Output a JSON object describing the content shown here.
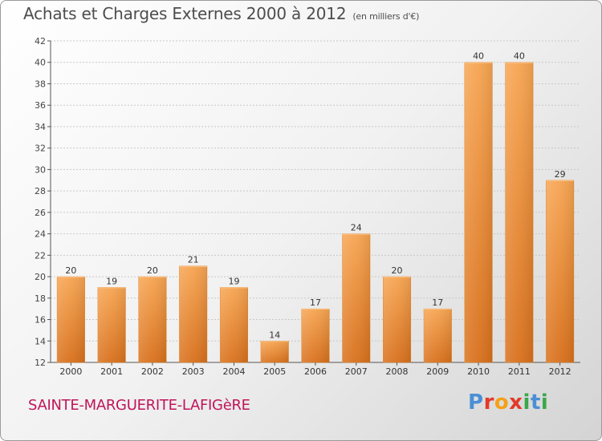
{
  "chart_data": {
    "type": "bar",
    "title": "Achats et Charges Externes 2000 à 2012",
    "subtitle": "(en milliers d'€)",
    "categories": [
      "2000",
      "2001",
      "2002",
      "2003",
      "2004",
      "2005",
      "2006",
      "2007",
      "2008",
      "2009",
      "2010",
      "2011",
      "2012"
    ],
    "values": [
      20,
      19,
      20,
      21,
      19,
      14,
      17,
      24,
      20,
      17,
      40,
      40,
      29
    ],
    "ylim": [
      12,
      42
    ],
    "yticks": [
      12,
      14,
      16,
      18,
      20,
      22,
      24,
      26,
      28,
      30,
      32,
      34,
      36,
      38,
      40,
      42
    ],
    "grid": true,
    "bar_color": "#f0892c"
  },
  "commune": "SAINTE-MARGUERITE-LAFIGèRE",
  "logo": {
    "letters": [
      {
        "char": "P",
        "color": "#4a8fd6"
      },
      {
        "char": "r",
        "color": "#e23a2a"
      },
      {
        "char": "o",
        "color": "#f3a11a"
      },
      {
        "char": "x",
        "color": "#e23a2a"
      },
      {
        "char": "i",
        "color": "#3aa84a"
      },
      {
        "char": "t",
        "color": "#4a8fd6"
      },
      {
        "char": "i",
        "color": "#3aa84a"
      }
    ]
  }
}
